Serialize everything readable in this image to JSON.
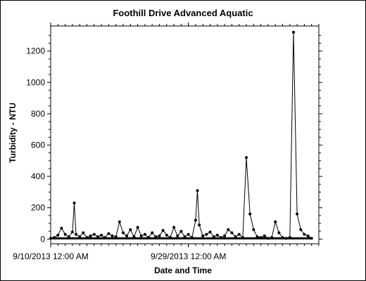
{
  "chart_data": {
    "type": "line",
    "title": "Foothill Drive Advanced Aquatic",
    "xlabel": "Date and Time",
    "ylabel": "Turbidity - NTU",
    "x_range": [
      "9/10/2013 12:00 AM",
      "10/17/2013 12:00 AM"
    ],
    "x_tick_labels": [
      "9/10/2013 12:00 AM",
      "9/29/2013 12:00 AM"
    ],
    "ylim": [
      -30,
      1360
    ],
    "y_ticks": [
      0,
      200,
      400,
      600,
      800,
      1000,
      1200
    ],
    "grid": false,
    "legend": "none",
    "series_color": "#000000",
    "baseline_value": 5,
    "series": [
      {
        "x": [
          "9/10/2013 12:00 AM",
          "9/10/2013 12:00 PM",
          "9/11/2013 12:00 AM",
          "9/11/2013 12:00 PM",
          "9/12/2013 12:00 AM",
          "9/12/2013 12:00 PM",
          "9/13/2013 12:00 AM",
          "9/13/2013 6:00 AM",
          "9/13/2013 12:00 PM",
          "9/14/2013 12:00 AM",
          "9/14/2013 12:00 PM",
          "9/15/2013 12:00 AM",
          "9/15/2013 12:00 PM",
          "9/16/2013 12:00 AM",
          "9/16/2013 12:00 PM",
          "9/17/2013 12:00 AM",
          "9/17/2013 12:00 PM",
          "9/18/2013 12:00 AM",
          "9/18/2013 12:00 PM",
          "9/19/2013 12:00 AM",
          "9/19/2013 12:00 PM",
          "9/20/2013 12:00 AM",
          "9/20/2013 12:00 PM",
          "9/21/2013 12:00 AM",
          "9/21/2013 12:00 PM",
          "9/22/2013 12:00 AM",
          "9/22/2013 12:00 PM",
          "9/23/2013 12:00 AM",
          "9/23/2013 12:00 PM",
          "9/24/2013 12:00 AM",
          "9/24/2013 12:00 PM",
          "9/25/2013 12:00 AM",
          "9/25/2013 12:00 PM",
          "9/26/2013 12:00 AM",
          "9/26/2013 12:00 PM",
          "9/27/2013 12:00 AM",
          "9/27/2013 12:00 PM",
          "9/28/2013 12:00 AM",
          "9/28/2013 12:00 PM",
          "9/29/2013 12:00 AM",
          "9/29/2013 12:00 PM",
          "9/30/2013 12:00 AM",
          "9/30/2013 6:00 AM",
          "9/30/2013 12:00 PM",
          "10/1/2013 12:00 AM",
          "10/1/2013 12:00 PM",
          "10/2/2013 12:00 AM",
          "10/2/2013 12:00 PM",
          "10/3/2013 12:00 AM",
          "10/3/2013 12:00 PM",
          "10/4/2013 12:00 AM",
          "10/4/2013 12:00 PM",
          "10/5/2013 12:00 AM",
          "10/5/2013 12:00 PM",
          "10/6/2013 12:00 AM",
          "10/6/2013 12:00 PM",
          "10/7/2013 12:00 AM",
          "10/7/2013 12:00 PM",
          "10/8/2013 12:00 AM",
          "10/8/2013 12:00 PM",
          "10/9/2013 12:00 AM",
          "10/9/2013 12:00 PM",
          "10/10/2013 12:00 AM",
          "10/10/2013 12:00 PM",
          "10/11/2013 12:00 AM",
          "10/11/2013 12:00 PM",
          "10/12/2013 12:00 AM",
          "10/12/2013 12:00 PM",
          "10/13/2013 12:00 AM",
          "10/13/2013 12:00 PM",
          "10/14/2013 12:00 AM",
          "10/14/2013 12:00 PM",
          "10/15/2013 12:00 AM",
          "10/15/2013 12:00 PM",
          "10/16/2013 12:00 AM"
        ],
        "values": [
          5,
          10,
          25,
          70,
          30,
          15,
          45,
          230,
          30,
          15,
          40,
          10,
          20,
          30,
          15,
          25,
          10,
          35,
          20,
          15,
          110,
          40,
          20,
          60,
          15,
          75,
          20,
          30,
          10,
          40,
          15,
          20,
          55,
          25,
          10,
          75,
          20,
          50,
          15,
          30,
          10,
          120,
          310,
          90,
          20,
          30,
          45,
          15,
          25,
          10,
          20,
          60,
          40,
          15,
          30,
          10,
          520,
          160,
          60,
          15,
          10,
          20,
          5,
          10,
          110,
          40,
          10,
          5,
          10,
          1320,
          160,
          60,
          30,
          20,
          5
        ]
      }
    ]
  }
}
